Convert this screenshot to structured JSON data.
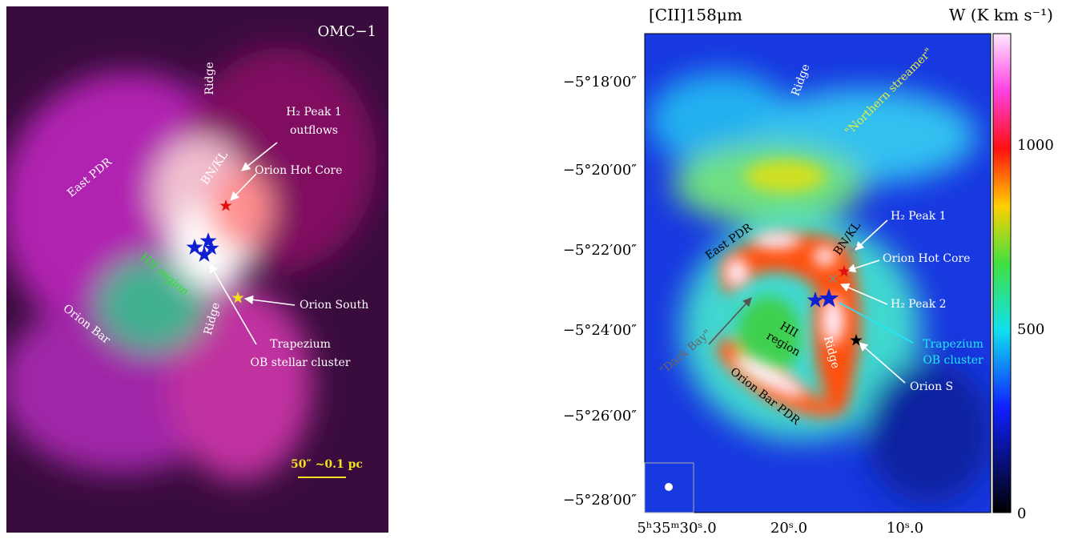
{
  "left_panel": {
    "title": "OMC−1",
    "labels": [
      "Ridge",
      "H₂ Peak 1",
      "outflows",
      "BN/KL",
      "Orion Hot Core",
      "East PDR",
      "HII region",
      "Ridge",
      "Orion South",
      "Orion Bar",
      "Trapezium",
      "OB stellar cluster"
    ],
    "scale_bar": "50″ ~0.1 pc"
  },
  "right_panel": {
    "title": "[CII]158μm",
    "colorbar_title": "W (K km s⁻¹)",
    "y_ticks": [
      "−5°18′00″",
      "−5°20′00″",
      "−5°22′00″",
      "−5°24′00″",
      "−5°26′00″",
      "−5°28′00″"
    ],
    "x_ticks": [
      "5ʰ35ᵐ30ˢ.0",
      "20ˢ.0",
      "10ˢ.0"
    ],
    "colorbar_ticks": [
      "1000",
      "500",
      "0"
    ],
    "labels": [
      "Ridge",
      "\"Northern streamer\"",
      "H₂ Peak 1",
      "BN/KL",
      "East PDR",
      "Orion Hot Core",
      "H₂ Peak 2",
      "Trapezium",
      "OB cluster",
      "HII",
      "region",
      "Ridge",
      "\"Dark Bay\"",
      "Orion S",
      "Orion Bar PDR"
    ]
  }
}
